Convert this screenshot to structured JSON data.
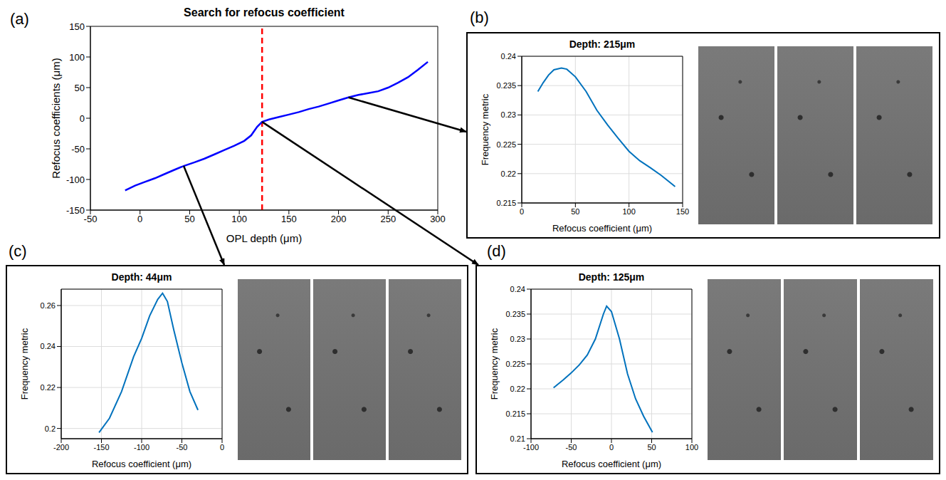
{
  "chart_data": [
    {
      "panel": "(a)",
      "type": "line",
      "title": "Search for refocus coefficient",
      "x_label": "OPL depth (μm)",
      "y_label": "Refocus coefficients (μm)",
      "x": [
        -15,
        -5,
        5,
        15,
        25,
        35,
        44,
        55,
        65,
        75,
        85,
        95,
        105,
        112,
        118,
        123,
        130,
        140,
        150,
        160,
        170,
        180,
        190,
        200,
        210,
        220,
        230,
        240,
        250,
        260,
        270,
        280,
        290
      ],
      "values": [
        -118,
        -110,
        -104,
        -98,
        -91,
        -84,
        -78,
        -72,
        -66,
        -59,
        -52,
        -45,
        -37,
        -28,
        -14,
        -6,
        -2,
        2,
        6,
        10,
        15,
        19,
        24,
        29,
        34,
        38,
        41,
        44,
        50,
        58,
        67,
        79,
        92
      ],
      "color": "#0000ff",
      "xlim": [
        -50,
        300
      ],
      "xticks": [
        -50,
        0,
        50,
        100,
        150,
        200,
        250,
        300
      ],
      "ylim": [
        -150,
        150
      ],
      "yticks": [
        -150,
        -100,
        -50,
        0,
        50,
        100,
        150
      ],
      "grid": false,
      "reference_lines": [
        {
          "x": 123,
          "color": "#ff0000",
          "line_style": "dashed"
        }
      ]
    },
    {
      "panel": "(b)",
      "type": "line",
      "title": "Depth: 215μm",
      "x_label": "Refocus coefficient (μm)",
      "y_label": "Frequency metric",
      "x": [
        15,
        20,
        25,
        30,
        37,
        42,
        50,
        60,
        70,
        80,
        90,
        100,
        110,
        120,
        130,
        143
      ],
      "values": [
        0.234,
        0.2355,
        0.2368,
        0.2377,
        0.238,
        0.2378,
        0.2365,
        0.234,
        0.2308,
        0.2283,
        0.226,
        0.2238,
        0.2222,
        0.221,
        0.2197,
        0.2178
      ],
      "color": "#0072bd",
      "xlim": [
        0,
        150
      ],
      "xticks": [
        0,
        50,
        100,
        150
      ],
      "ylim": [
        0.215,
        0.24
      ],
      "yticks": [
        0.215,
        0.22,
        0.225,
        0.23,
        0.235,
        0.24
      ],
      "grid": true
    },
    {
      "panel": "(c)",
      "type": "line",
      "title": "Depth: 44μm",
      "x_label": "Refocus coefficient (μm)",
      "y_label": "Frequency metric",
      "x": [
        -153,
        -140,
        -125,
        -110,
        -100,
        -90,
        -80,
        -74,
        -68,
        -60,
        -50,
        -40,
        -30
      ],
      "values": [
        0.198,
        0.205,
        0.218,
        0.235,
        0.244,
        0.255,
        0.263,
        0.266,
        0.262,
        0.248,
        0.232,
        0.218,
        0.209
      ],
      "color": "#0072bd",
      "xlim": [
        -200,
        0
      ],
      "xticks": [
        -200,
        -150,
        -100,
        -50,
        0
      ],
      "ylim": [
        0.195,
        0.268
      ],
      "yticks": [
        0.2,
        0.22,
        0.24,
        0.26
      ],
      "grid": true
    },
    {
      "panel": "(d)",
      "type": "line",
      "title": "Depth: 125μm",
      "x_label": "Refocus coefficient (μm)",
      "y_label": "Frequency metric",
      "x": [
        -72,
        -60,
        -50,
        -40,
        -30,
        -20,
        -10,
        -6,
        0,
        10,
        20,
        30,
        40,
        51
      ],
      "values": [
        0.2202,
        0.2218,
        0.2232,
        0.2248,
        0.2268,
        0.23,
        0.235,
        0.2366,
        0.2355,
        0.23,
        0.223,
        0.218,
        0.2145,
        0.2113
      ],
      "color": "#0072bd",
      "xlim": [
        -100,
        100
      ],
      "xticks": [
        -100,
        -50,
        0,
        50,
        100
      ],
      "ylim": [
        0.21,
        0.24
      ],
      "yticks": [
        0.21,
        0.215,
        0.22,
        0.225,
        0.23,
        0.235,
        0.24
      ],
      "grid": true
    }
  ]
}
